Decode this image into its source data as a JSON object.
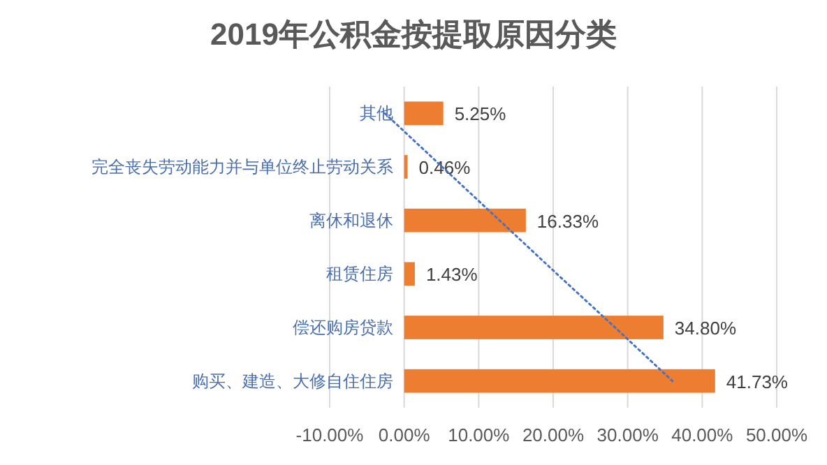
{
  "chart_data": {
    "type": "bar",
    "orientation": "horizontal",
    "title": "2019年公积金按提取原因分类",
    "categories": [
      "其他",
      "完全丧失劳动能力并与单位终止劳动关系",
      "离休和退休",
      "租赁住房",
      "偿还购房贷款",
      "购买、建造、大修自住住房"
    ],
    "series": [
      {
        "color": "#ed7d31",
        "values": [
          5.25,
          0.46,
          16.33,
          1.43,
          34.8,
          41.73
        ],
        "value_labels": [
          "5.25%",
          "0.46%",
          "16.33%",
          "1.43%",
          "34.80%",
          "41.73%"
        ]
      },
      {
        "type": "line",
        "color": "#4472c4",
        "line_style": "dotted",
        "values": [
          -2.6,
          5.1,
          12.8,
          20.5,
          28.3,
          36.0
        ]
      }
    ],
    "xlim": [
      -10,
      50
    ],
    "xticks": [
      {
        "value": -10,
        "label": "-10.00%"
      },
      {
        "value": 0,
        "label": "0.00%"
      },
      {
        "value": 10,
        "label": "10.00%"
      },
      {
        "value": 20,
        "label": "20.00%"
      },
      {
        "value": 30,
        "label": "30.00%"
      },
      {
        "value": 40,
        "label": "40.00%"
      },
      {
        "value": 50,
        "label": "50.00%"
      }
    ],
    "grid": "x"
  }
}
